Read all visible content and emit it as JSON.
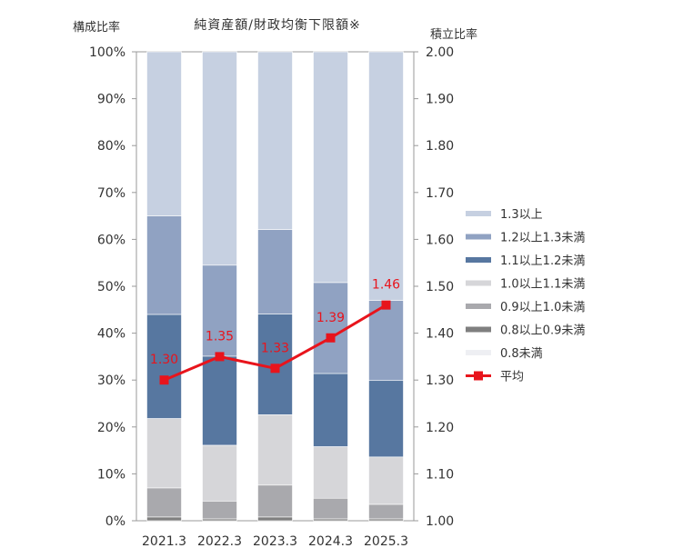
{
  "chart_data": {
    "type": "bar",
    "title": "純資産額/財政均衡下限額※",
    "left_axis_label": "構成比率",
    "right_axis_label": "積立比率",
    "categories": [
      "2021.3",
      "2022.3",
      "2023.3",
      "2024.3",
      "2025.3"
    ],
    "left_ylim": [
      0,
      100
    ],
    "left_ticks": [
      "0%",
      "10%",
      "20%",
      "30%",
      "40%",
      "50%",
      "60%",
      "70%",
      "80%",
      "90%",
      "100%"
    ],
    "right_ylim": [
      1.0,
      2.0
    ],
    "right_ticks": [
      "1.00",
      "1.10",
      "1.20",
      "1.30",
      "1.40",
      "1.50",
      "1.60",
      "1.70",
      "1.80",
      "1.90",
      "2.00"
    ],
    "stacked_series": [
      {
        "name": "0.8未満",
        "color": "#eeeff3",
        "values": [
          0,
          0,
          0,
          0,
          0
        ]
      },
      {
        "name": "0.8以上0.9未満",
        "color": "#7f7f7f",
        "values": [
          0.8,
          0.4,
          0.8,
          0.4,
          0.4
        ]
      },
      {
        "name": "0.9以上1.0未満",
        "color": "#a9a9ad",
        "values": [
          6.2,
          3.8,
          6.8,
          4.4,
          3.1
        ]
      },
      {
        "name": "1.0以上1.1未満",
        "color": "#d6d6d9",
        "values": [
          14.8,
          11.9,
          15.0,
          11.0,
          10.1
        ]
      },
      {
        "name": "1.1以上1.2未満",
        "color": "#5777a0",
        "values": [
          22.2,
          19.0,
          21.5,
          15.6,
          16.3
        ]
      },
      {
        "name": "1.2以上1.3未満",
        "color": "#90a2c2",
        "values": [
          21.0,
          19.4,
          18.0,
          19.4,
          17.1
        ]
      },
      {
        "name": "1.3以上",
        "color": "#c6d0e1",
        "values": [
          35.0,
          45.5,
          37.9,
          49.2,
          53.0
        ]
      }
    ],
    "legend_order": [
      "1.3以上",
      "1.2以上1.3未満",
      "1.1以上1.2未満",
      "1.0以上1.1未満",
      "0.9以上1.0未満",
      "0.8以上0.9未満",
      "0.8未満"
    ],
    "line_series": {
      "name": "平均",
      "color": "#e8141c",
      "values": [
        1.3,
        1.35,
        1.325,
        1.39,
        1.46
      ],
      "labels": [
        "1.30",
        "1.35",
        "1.33",
        "1.39",
        "1.46"
      ]
    },
    "legend_placement": "right"
  }
}
